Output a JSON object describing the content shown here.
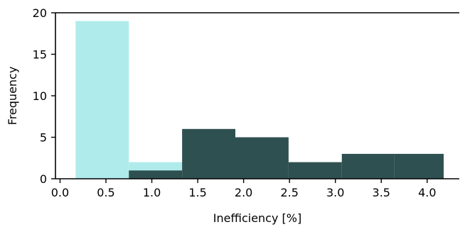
{
  "chart_data": {
    "type": "bar",
    "title": "",
    "xlabel": "Inefficiency [%]",
    "ylabel": "Frequency",
    "xlim": [
      -0.05,
      4.35
    ],
    "ylim": [
      0,
      20
    ],
    "x_ticks": [
      0.0,
      0.5,
      1.0,
      1.5,
      2.0,
      2.5,
      3.0,
      3.5,
      4.0
    ],
    "x_tick_labels": [
      "0.0",
      "0.5",
      "1.0",
      "1.5",
      "2.0",
      "2.5",
      "3.0",
      "3.5",
      "4.0"
    ],
    "y_ticks": [
      0,
      5,
      10,
      15,
      20
    ],
    "y_tick_labels": [
      "0",
      "5",
      "10",
      "15",
      "20"
    ],
    "grid": false,
    "series": [
      {
        "color": "#b0ebeb",
        "bins": [
          {
            "start": 0.17,
            "end": 0.75,
            "count": 19
          },
          {
            "start": 0.75,
            "end": 1.33,
            "count": 2
          }
        ]
      },
      {
        "color": "#2f5050",
        "bins": [
          {
            "start": 0.75,
            "end": 1.33,
            "count": 1
          },
          {
            "start": 1.33,
            "end": 1.91,
            "count": 6
          },
          {
            "start": 1.91,
            "end": 2.49,
            "count": 5
          },
          {
            "start": 2.49,
            "end": 3.07,
            "count": 2
          },
          {
            "start": 3.07,
            "end": 3.64,
            "count": 3
          },
          {
            "start": 3.64,
            "end": 4.18,
            "count": 3
          }
        ]
      }
    ]
  }
}
